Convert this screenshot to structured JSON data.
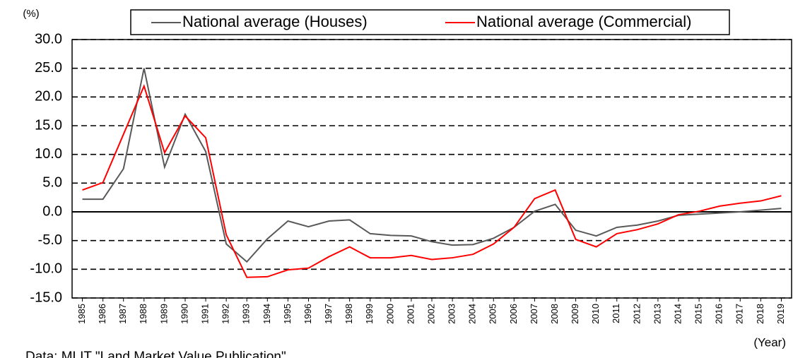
{
  "chart_data": {
    "type": "line",
    "y_unit_label": "(%)",
    "x_axis_label": "(Year)",
    "source": "Data: MLIT \"Land Market Value Publication\"",
    "categories": [
      "1985",
      "1986",
      "1987",
      "1988",
      "1989",
      "1990",
      "1991",
      "1992",
      "1993",
      "1994",
      "1995",
      "1996",
      "1997",
      "1998",
      "1999",
      "2000",
      "2001",
      "2002",
      "2003",
      "2004",
      "2005",
      "2006",
      "2007",
      "2008",
      "2009",
      "2010",
      "2011",
      "2012",
      "2013",
      "2014",
      "2015",
      "2016",
      "2017",
      "2018",
      "2019"
    ],
    "series": [
      {
        "name": "National average (Houses)",
        "color": "#595959",
        "values": [
          2.2,
          2.2,
          7.5,
          25.0,
          7.8,
          17.0,
          10.5,
          -5.6,
          -8.7,
          -4.7,
          -1.6,
          -2.6,
          -1.6,
          -1.4,
          -3.8,
          -4.1,
          -4.2,
          -5.2,
          -5.8,
          -5.7,
          -4.6,
          -2.7,
          0.1,
          1.3,
          -3.2,
          -4.2,
          -2.7,
          -2.3,
          -1.6,
          -0.6,
          -0.4,
          -0.2,
          0.0,
          0.3,
          0.6
        ]
      },
      {
        "name": "National average (Commercial)",
        "color": "#ff0000",
        "values": [
          3.8,
          5.1,
          13.5,
          21.9,
          10.3,
          16.7,
          12.9,
          -4.0,
          -11.4,
          -11.3,
          -10.1,
          -9.8,
          -7.8,
          -6.1,
          -8.0,
          -8.0,
          -7.6,
          -8.3,
          -8.0,
          -7.4,
          -5.6,
          -2.7,
          2.3,
          3.8,
          -4.8,
          -6.1,
          -3.8,
          -3.1,
          -2.1,
          -0.5,
          0.1,
          1.0,
          1.5,
          1.9,
          2.8
        ]
      }
    ],
    "ylim": [
      -15,
      30
    ],
    "yticks": [
      {
        "value": -15,
        "label": "-15.0"
      },
      {
        "value": -10,
        "label": "-10.0"
      },
      {
        "value": -5,
        "label": "-5.0"
      },
      {
        "value": 0,
        "label": "0.0"
      },
      {
        "value": 5,
        "label": "5.0"
      },
      {
        "value": 10,
        "label": "10.0"
      },
      {
        "value": 15,
        "label": "15.0"
      },
      {
        "value": 20,
        "label": "20.0"
      },
      {
        "value": 25,
        "label": "25.0"
      },
      {
        "value": 30,
        "label": "30.0"
      }
    ],
    "grid": true
  }
}
